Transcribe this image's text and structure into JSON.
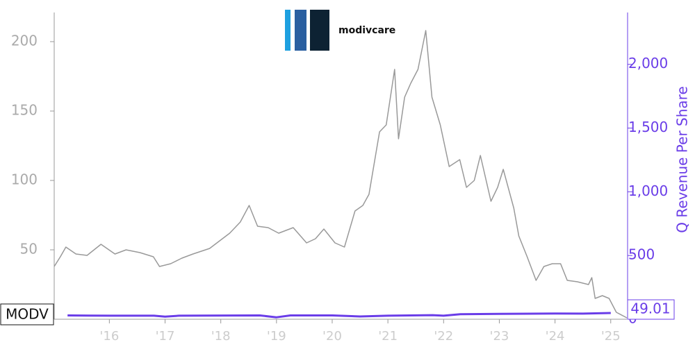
{
  "chart_data": {
    "type": "line",
    "logo_text": "modivcare",
    "y2label": "Q Revenue Per Share",
    "series": [
      {
        "name": "MODV",
        "color": "#999999",
        "axis": "y",
        "x": [
          2015.01,
          2015.12,
          2015.22,
          2015.4,
          2015.6,
          2015.85,
          2016.1,
          2016.3,
          2016.55,
          2016.79,
          2016.9,
          2017.1,
          2017.3,
          2017.5,
          2017.8,
          2018.16,
          2018.35,
          2018.51,
          2018.66,
          2018.85,
          2019.04,
          2019.3,
          2019.54,
          2019.7,
          2019.85,
          2020.05,
          2020.22,
          2020.41,
          2020.55,
          2020.66,
          2020.85,
          2020.97,
          2021.12,
          2021.19,
          2021.3,
          2021.41,
          2021.54,
          2021.68,
          2021.79,
          2021.94,
          2022.1,
          2022.29,
          2022.41,
          2022.55,
          2022.66,
          2022.85,
          2022.97,
          2023.07,
          2023.26,
          2023.35,
          2023.5,
          2023.66,
          2023.8,
          2023.95,
          2024.1,
          2024.22,
          2024.4,
          2024.6,
          2024.66,
          2024.72,
          2024.85,
          2024.97,
          2025.1,
          2025.29
        ],
        "values": [
          38,
          45,
          52,
          47,
          46,
          54,
          47,
          50,
          48,
          45,
          38,
          40,
          44,
          47,
          51,
          62,
          70,
          82,
          67,
          66,
          62,
          66,
          55,
          58,
          65,
          55,
          52,
          78,
          82,
          90,
          135,
          140,
          180,
          130,
          160,
          170,
          180,
          208,
          160,
          140,
          110,
          115,
          95,
          100,
          118,
          85,
          95,
          108,
          80,
          60,
          45,
          28,
          38,
          40,
          40,
          28,
          27,
          25,
          30,
          15,
          17,
          15,
          5,
          1
        ]
      },
      {
        "name": "Q Revenue Per Share",
        "color": "#6a3de8",
        "axis": "y2",
        "x": [
          2015.25,
          2016.0,
          2016.8,
          2017.0,
          2017.25,
          2018.7,
          2019.0,
          2019.25,
          2020.0,
          2020.5,
          2021.0,
          2021.8,
          2022.0,
          2022.3,
          2023.0,
          2024.0,
          2024.5,
          2025.0
        ],
        "values": [
          30,
          28,
          28,
          20,
          28,
          30,
          15,
          30,
          30,
          22,
          28,
          32,
          28,
          40,
          42,
          45,
          44,
          49.01
        ]
      }
    ],
    "xlim": [
      2015.01,
      2025.29
    ],
    "xticks": [
      {
        "value": 2016,
        "label": "'16"
      },
      {
        "value": 2017,
        "label": "'17"
      },
      {
        "value": 2018,
        "label": "'18"
      },
      {
        "value": 2019,
        "label": "'19"
      },
      {
        "value": 2020,
        "label": "'20"
      },
      {
        "value": 2021,
        "label": "'21"
      },
      {
        "value": 2022,
        "label": "'22"
      },
      {
        "value": 2023,
        "label": "'23"
      },
      {
        "value": 2024,
        "label": "'24"
      },
      {
        "value": 2025,
        "label": "'25"
      }
    ],
    "ylim": [
      0,
      221
    ],
    "yticks": [
      50,
      100,
      150,
      200
    ],
    "y2lim": [
      0,
      2407
    ],
    "y2ticks": [
      0,
      500,
      {
        "value": 1000,
        "label": "1,000"
      },
      {
        "value": 1500,
        "label": "1,500"
      },
      {
        "value": 2000,
        "label": "2,000"
      }
    ]
  }
}
